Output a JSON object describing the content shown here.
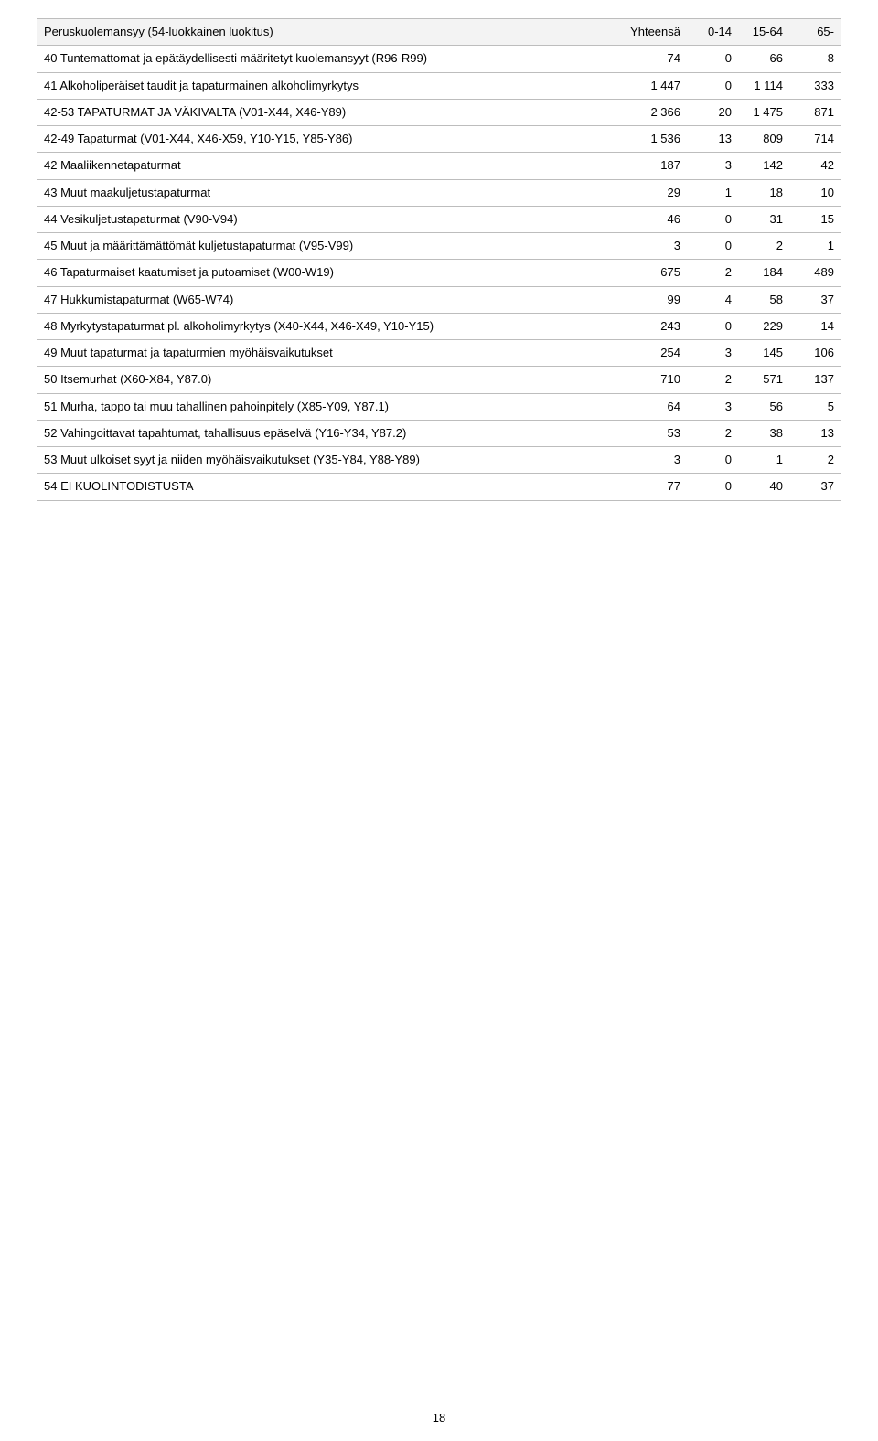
{
  "pageNumber": "18",
  "header": {
    "label": "Peruskuolemansyy (54-luokkainen luokitus)",
    "cols": [
      "Yhteensä",
      "0-14",
      "15-64",
      "65-"
    ]
  },
  "rows": [
    {
      "label": "40 Tuntemattomat ja epätäydellisesti määritetyt kuolemansyyt (R96-R99)",
      "c": [
        "74",
        "0",
        "66",
        "8"
      ]
    },
    {
      "label": "41 Alkoholiperäiset taudit ja tapaturmainen alkoholimyrkytys",
      "c": [
        "1 447",
        "0",
        "1 114",
        "333"
      ]
    },
    {
      "label": "42-53 TAPATURMAT JA VÄKIVALTA (V01-X44, X46-Y89)",
      "c": [
        "2 366",
        "20",
        "1 475",
        "871"
      ]
    },
    {
      "label": "42-49 Tapaturmat (V01-X44, X46-X59, Y10-Y15, Y85-Y86)",
      "c": [
        "1 536",
        "13",
        "809",
        "714"
      ]
    },
    {
      "label": "42 Maaliikennetapaturmat",
      "c": [
        "187",
        "3",
        "142",
        "42"
      ]
    },
    {
      "label": "43 Muut maakuljetustapaturmat",
      "c": [
        "29",
        "1",
        "18",
        "10"
      ]
    },
    {
      "label": "44 Vesikuljetustapaturmat (V90-V94)",
      "c": [
        "46",
        "0",
        "31",
        "15"
      ]
    },
    {
      "label": "45 Muut ja määrittämättömät kuljetustapaturmat (V95-V99)",
      "c": [
        "3",
        "0",
        "2",
        "1"
      ]
    },
    {
      "label": "46 Tapaturmaiset kaatumiset ja putoamiset (W00-W19)",
      "c": [
        "675",
        "2",
        "184",
        "489"
      ]
    },
    {
      "label": "47 Hukkumistapaturmat (W65-W74)",
      "c": [
        "99",
        "4",
        "58",
        "37"
      ]
    },
    {
      "label": "48 Myrkytystapaturmat pl. alkoholimyrkytys (X40-X44, X46-X49, Y10-Y15)",
      "c": [
        "243",
        "0",
        "229",
        "14"
      ]
    },
    {
      "label": "49 Muut tapaturmat ja tapaturmien myöhäisvaikutukset",
      "c": [
        "254",
        "3",
        "145",
        "106"
      ]
    },
    {
      "label": "50 Itsemurhat (X60-X84, Y87.0)",
      "c": [
        "710",
        "2",
        "571",
        "137"
      ]
    },
    {
      "label": "51 Murha, tappo tai muu tahallinen pahoinpitely (X85-Y09, Y87.1)",
      "c": [
        "64",
        "3",
        "56",
        "5"
      ]
    },
    {
      "label": "52 Vahingoittavat tapahtumat, tahallisuus epäselvä (Y16-Y34, Y87.2)",
      "c": [
        "53",
        "2",
        "38",
        "13"
      ]
    },
    {
      "label": "53 Muut ulkoiset syyt ja niiden myöhäisvaikutukset (Y35-Y84, Y88-Y89)",
      "c": [
        "3",
        "0",
        "1",
        "2"
      ]
    },
    {
      "label": "54 EI KUOLINTODISTUSTA",
      "c": [
        "77",
        "0",
        "40",
        "37"
      ]
    }
  ]
}
